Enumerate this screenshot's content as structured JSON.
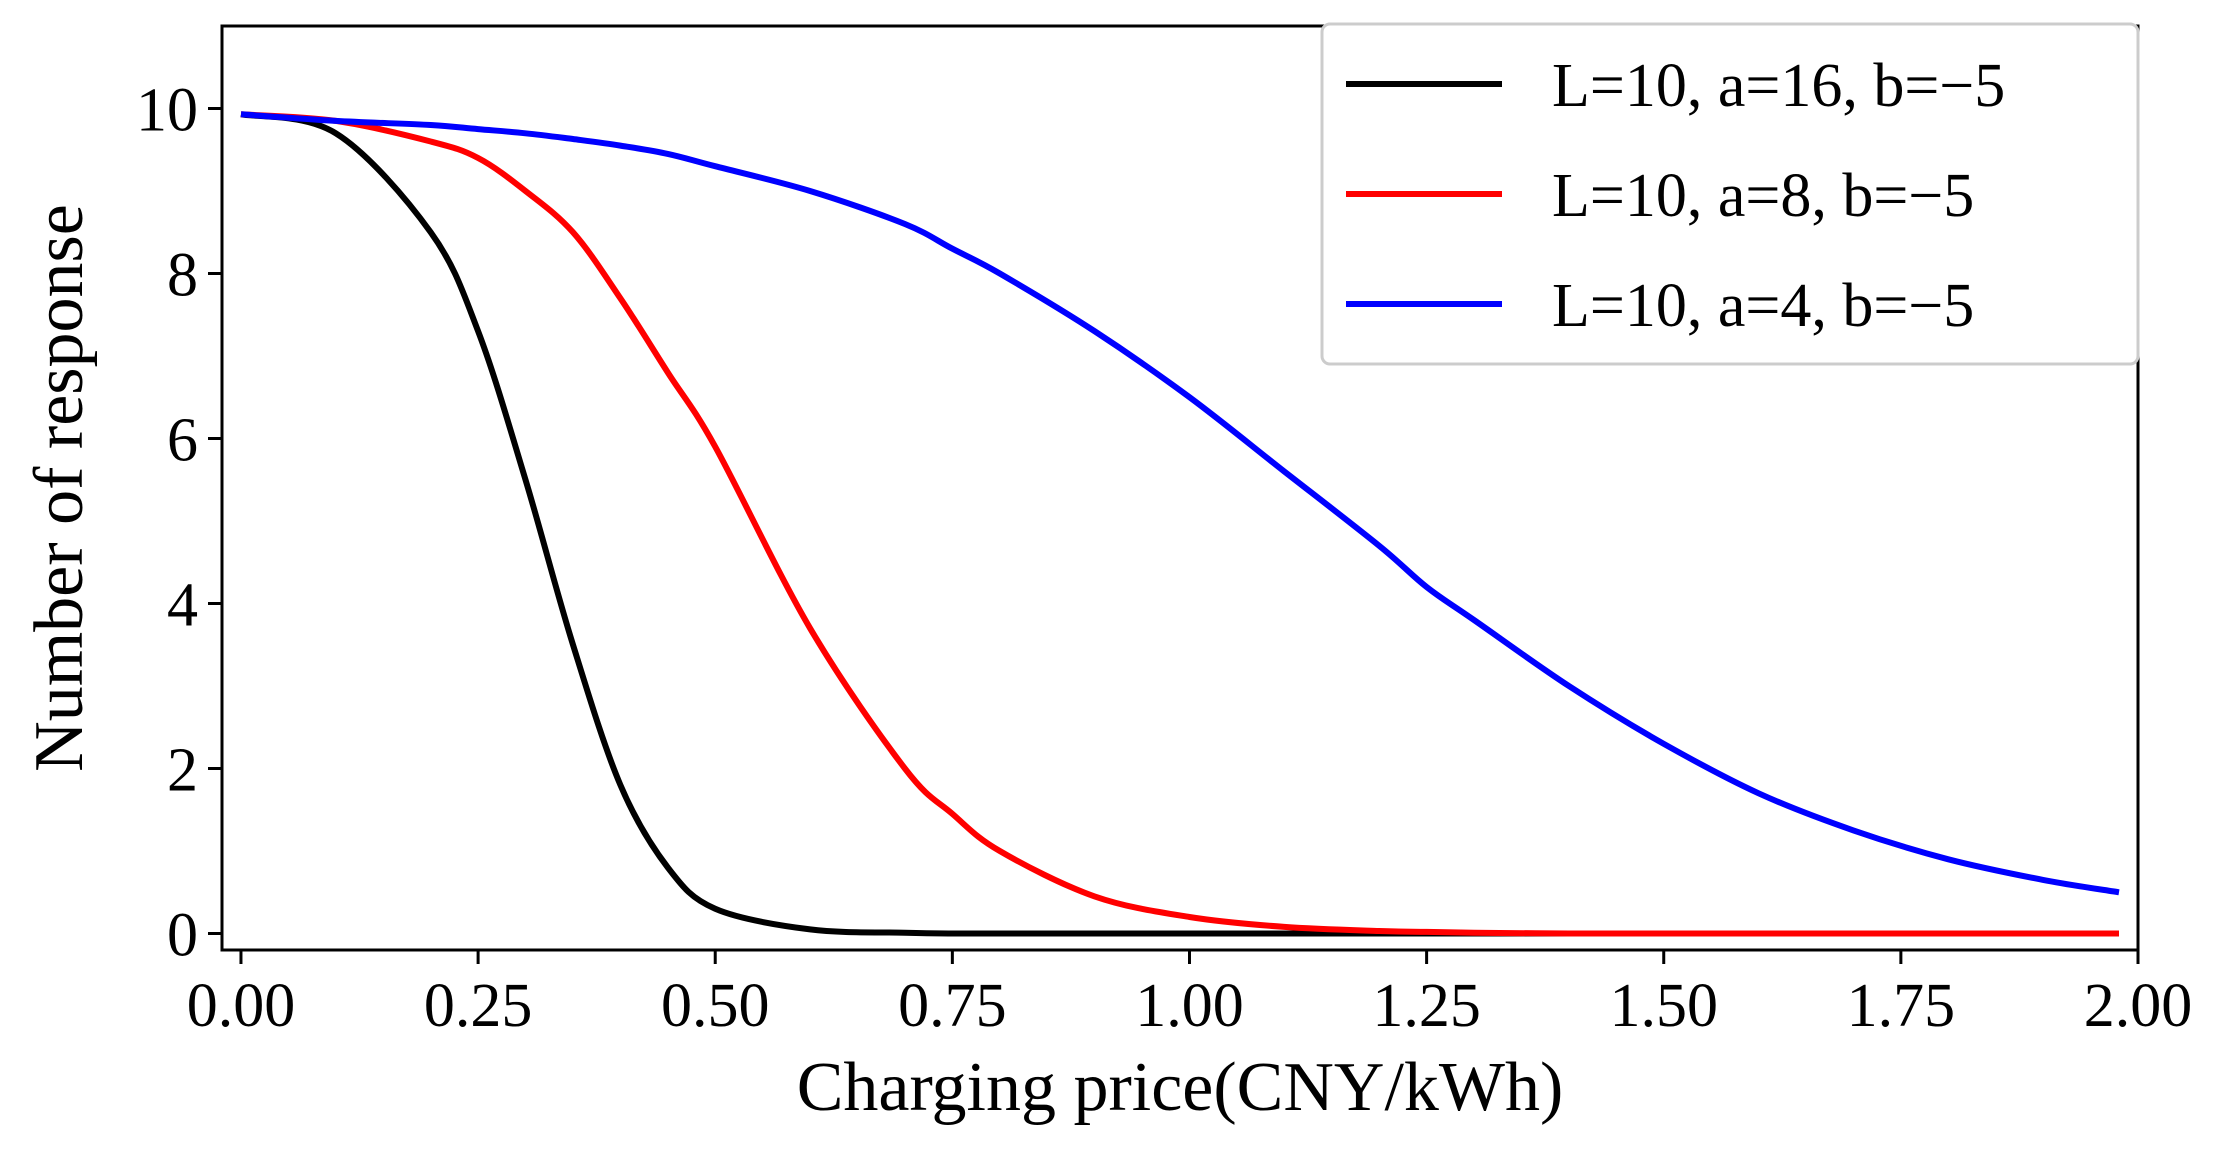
{
  "chart_data": {
    "type": "line",
    "title": "",
    "xlabel": "Charging price(CNY/kWh)",
    "ylabel": "Number of response",
    "xlim": [
      -0.02,
      2.0
    ],
    "ylim": [
      -0.2,
      11.0
    ],
    "xticks": [
      0.0,
      0.25,
      0.5,
      0.75,
      1.0,
      1.25,
      1.5,
      1.75,
      2.0
    ],
    "xtick_labels": [
      "0.00",
      "0.25",
      "0.50",
      "0.75",
      "1.00",
      "1.25",
      "1.50",
      "1.75",
      "2.00"
    ],
    "yticks": [
      0,
      2,
      4,
      6,
      8,
      10
    ],
    "ytick_labels": [
      "0",
      "2",
      "4",
      "6",
      "8",
      "10"
    ],
    "grid": false,
    "legend_position": "top-right",
    "x": [
      0.0,
      0.1,
      0.2,
      0.25,
      0.3,
      0.35,
      0.4,
      0.45,
      0.5,
      0.6,
      0.7,
      0.75,
      0.8,
      0.9,
      1.0,
      1.1,
      1.2,
      1.25,
      1.3,
      1.4,
      1.5,
      1.6,
      1.7,
      1.8,
      1.9,
      1.98
    ],
    "series": [
      {
        "name": "L=10, a=16, b=−5",
        "color": "#000000",
        "values": [
          9.93,
          9.7,
          8.5,
          7.3,
          5.5,
          3.5,
          1.8,
          0.8,
          0.3,
          0.05,
          0.01,
          0.0,
          0.0,
          0.0,
          0.0,
          0.0,
          0.0,
          0.0,
          0.0,
          0.0,
          0.0,
          0.0,
          0.0,
          0.0,
          0.0,
          0.0
        ]
      },
      {
        "name": "L=10, a=8, b=−5",
        "color": "#ff0000",
        "values": [
          9.93,
          9.85,
          9.6,
          9.4,
          9.0,
          8.5,
          7.7,
          6.8,
          5.9,
          3.7,
          2.0,
          1.45,
          1.0,
          0.45,
          0.2,
          0.08,
          0.03,
          0.02,
          0.01,
          0.0,
          0.0,
          0.0,
          0.0,
          0.0,
          0.0,
          0.0
        ]
      },
      {
        "name": "L=10, a=4, b=−5",
        "color": "#0000ff",
        "values": [
          9.93,
          9.85,
          9.8,
          9.75,
          9.7,
          9.63,
          9.55,
          9.45,
          9.3,
          9.0,
          8.6,
          8.3,
          8.0,
          7.3,
          6.5,
          5.6,
          4.7,
          4.2,
          3.8,
          3.0,
          2.3,
          1.7,
          1.25,
          0.9,
          0.65,
          0.5
        ]
      }
    ]
  }
}
